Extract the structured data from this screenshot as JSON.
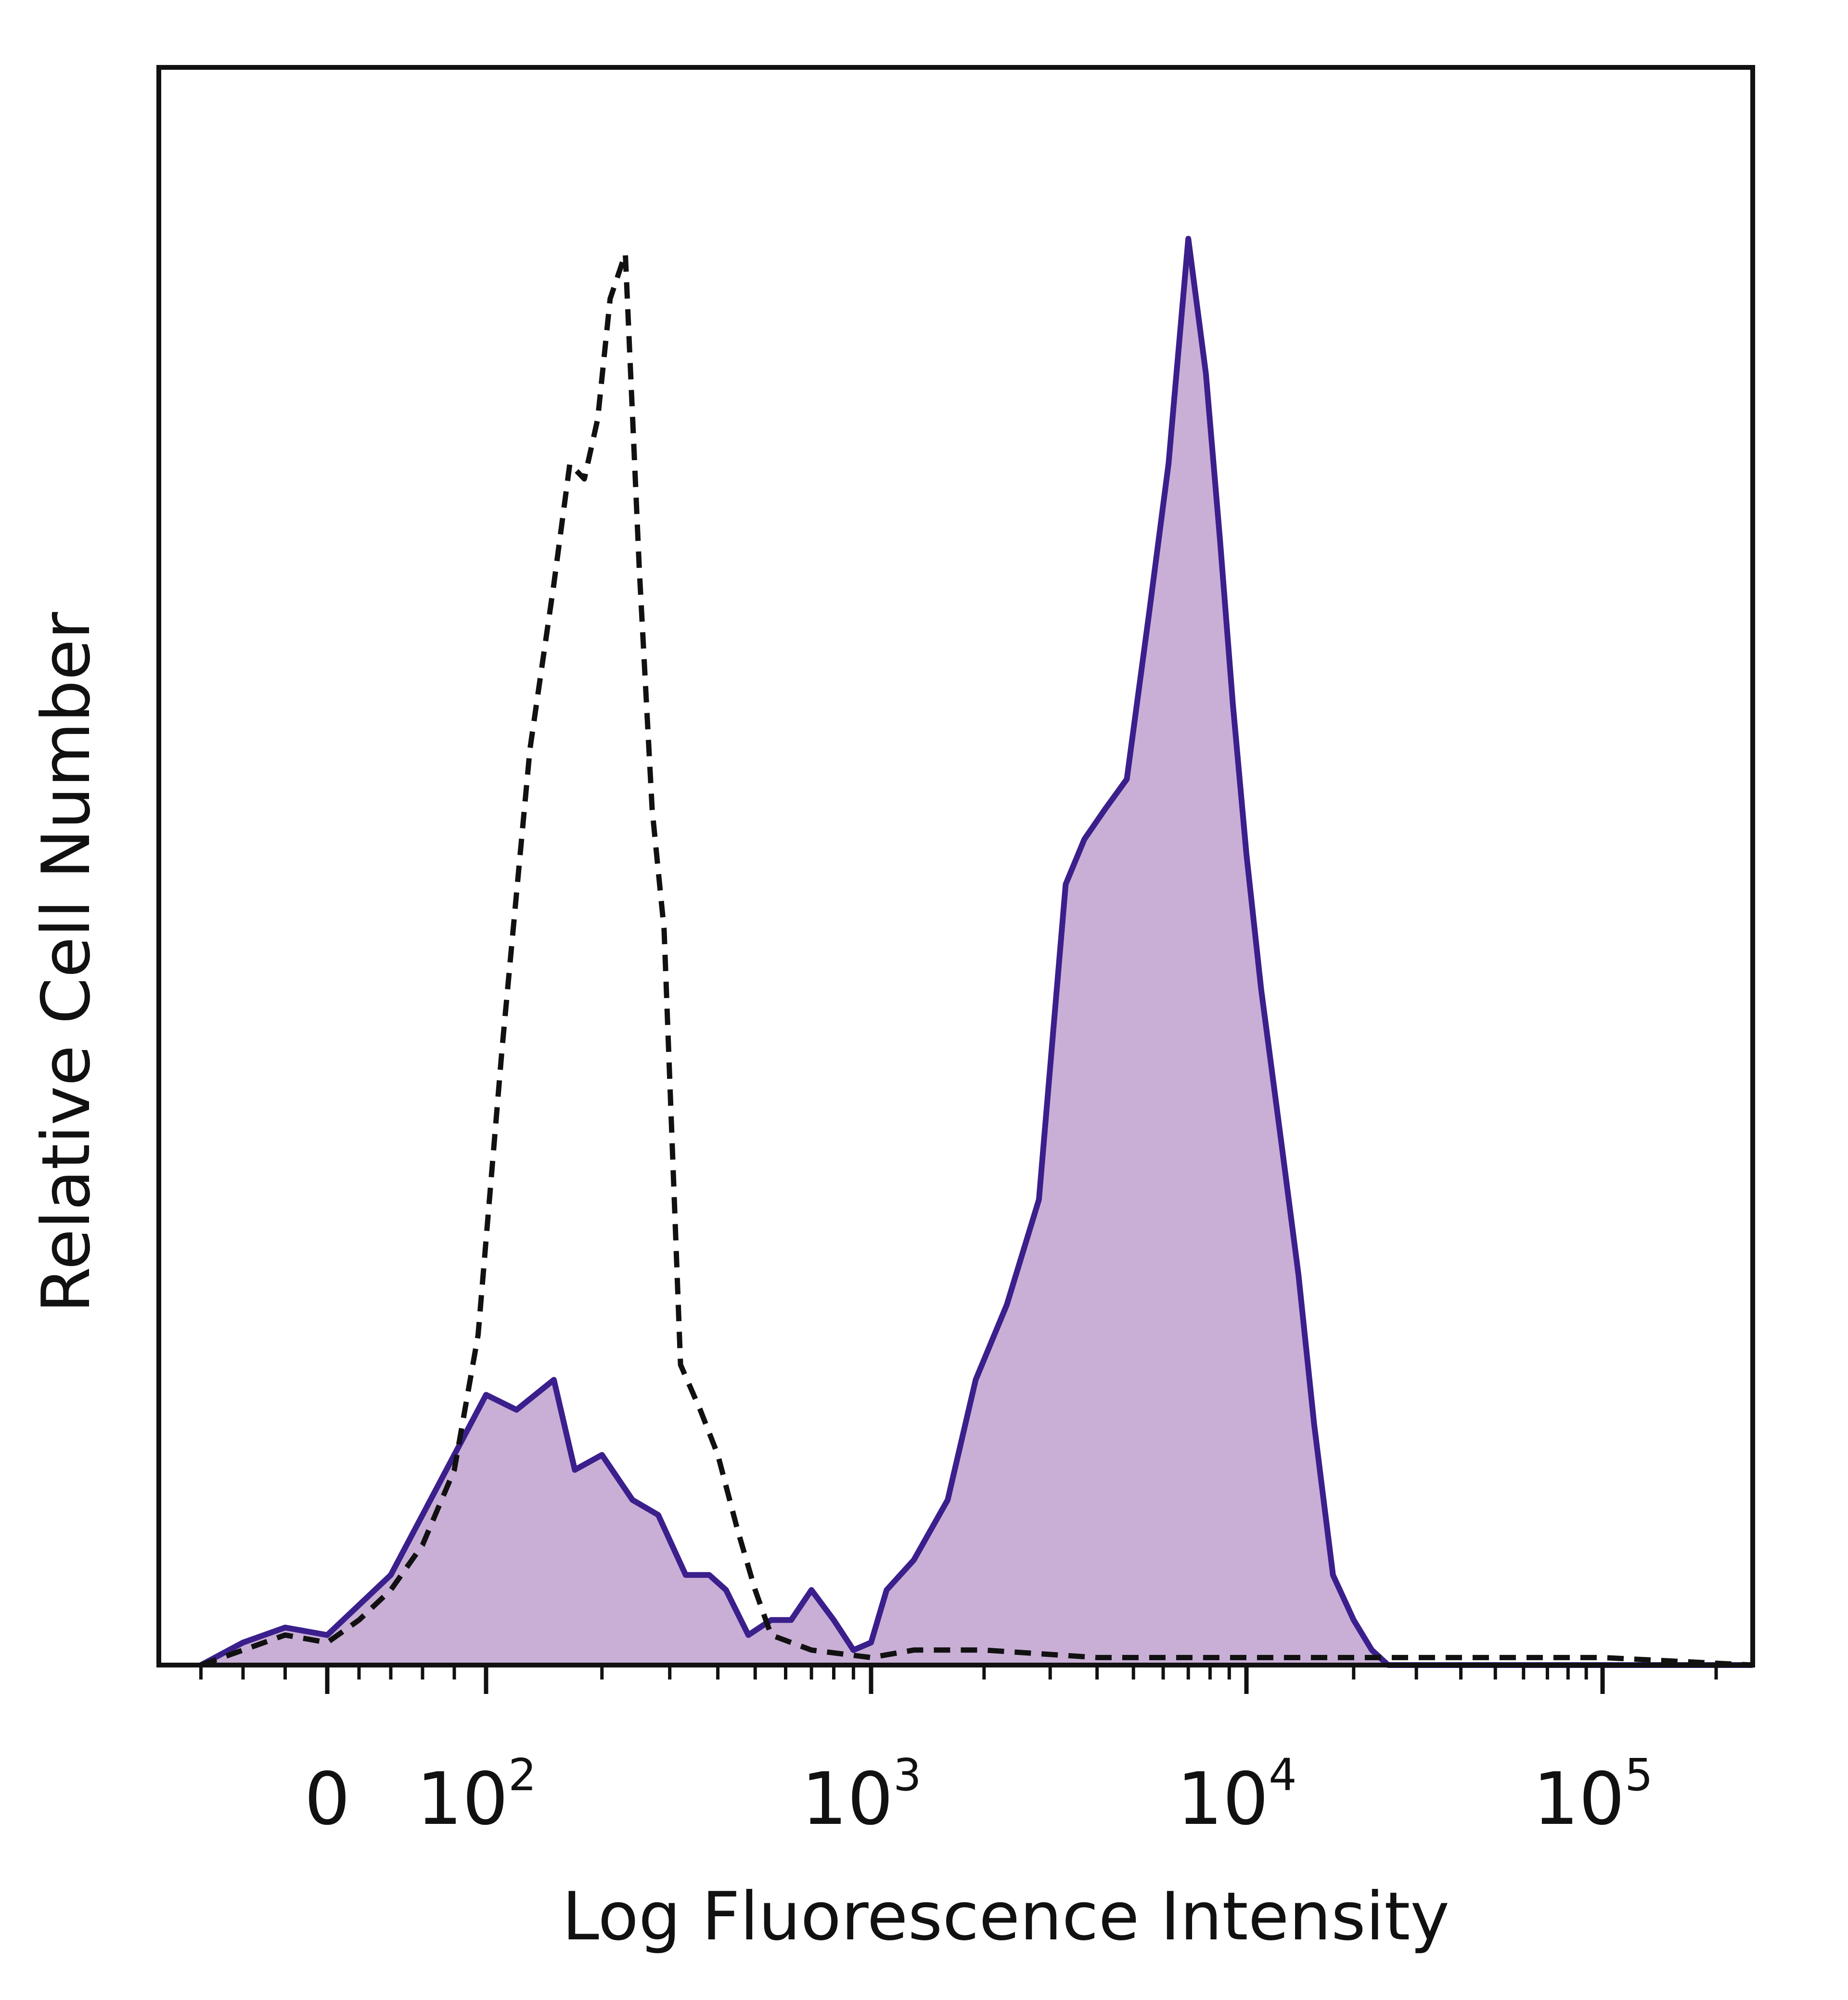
{
  "chart_data": {
    "type": "area",
    "title": "",
    "xlabel": "Log Fluorescence Intensity",
    "ylabel": "Relative Cell Number",
    "x_scale": "biexponential",
    "xlim": [
      -80,
      250000
    ],
    "ylim": [
      0,
      100
    ],
    "x_ticks": [
      {
        "value": 0,
        "base": "0",
        "exp": ""
      },
      {
        "value": 100,
        "base": "10",
        "exp": "2"
      },
      {
        "value": 1000,
        "base": "10",
        "exp": "3"
      },
      {
        "value": 10000,
        "base": "10",
        "exp": "4"
      },
      {
        "value": 100000,
        "base": "10",
        "exp": "5"
      }
    ],
    "grid": false,
    "legend": "none",
    "series": [
      {
        "style": "filled",
        "fill_color": "#c9afd6",
        "line_color": "#3b1f8c",
        "x": [
          -60,
          -40,
          -20,
          0,
          20,
          40,
          60,
          80,
          100,
          120,
          150,
          170,
          200,
          240,
          280,
          330,
          380,
          420,
          480,
          550,
          620,
          700,
          800,
          900,
          1000,
          1100,
          1300,
          1600,
          1900,
          2300,
          2800,
          3300,
          3700,
          4200,
          4800,
          5500,
          6200,
          7000,
          7800,
          8500,
          9200,
          10000,
          11000,
          12500,
          14000,
          15500,
          17500,
          20000,
          22500,
          25000,
          28000,
          32000,
          40000,
          60000,
          100000,
          160000,
          250000
        ],
        "y": [
          0,
          1.5,
          2.5,
          2,
          4,
          6,
          10,
          14,
          18,
          17,
          19,
          13,
          14,
          11,
          10,
          6,
          6,
          5,
          2,
          3,
          3,
          5,
          3,
          1,
          1.5,
          5,
          7,
          11,
          19,
          24,
          31,
          52,
          55,
          57,
          59,
          70,
          80,
          95,
          86,
          75,
          64,
          54,
          45,
          35,
          26,
          16,
          6,
          3,
          1,
          0,
          0,
          0,
          0,
          0,
          0,
          0,
          0
        ]
      },
      {
        "style": "dashed",
        "line_color": "#111111",
        "x": [
          -60,
          -40,
          -20,
          0,
          20,
          40,
          60,
          80,
          95,
          110,
          130,
          150,
          165,
          180,
          195,
          210,
          230,
          250,
          270,
          290,
          320,
          360,
          400,
          450,
          500,
          550,
          700,
          1000,
          1300,
          2000,
          4000,
          10000,
          30000,
          100000,
          250000
        ],
        "y": [
          0,
          1,
          2,
          1.5,
          3,
          5,
          8,
          13,
          22,
          41,
          61,
          72,
          80,
          79,
          83,
          91,
          94,
          73,
          57,
          49,
          20,
          17,
          14,
          9,
          5,
          2,
          1,
          0.5,
          1,
          1,
          0.5,
          0.5,
          0.5,
          0.5,
          0
        ]
      }
    ]
  }
}
